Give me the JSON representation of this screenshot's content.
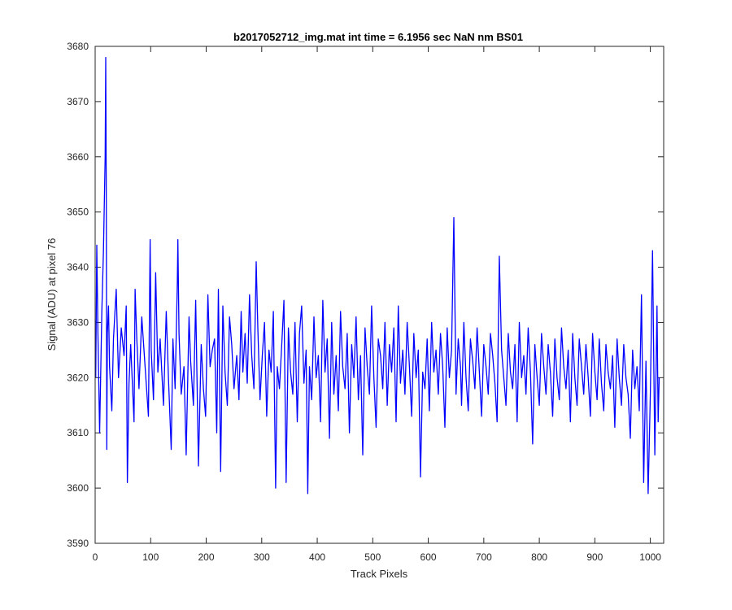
{
  "colors": {
    "line": "#0000ff",
    "axes": "#262626",
    "background": "#ffffff"
  },
  "chart_data": {
    "type": "line",
    "title": "b2017052712_img.mat int time = 6.1956 sec  NaN nm BS01",
    "xlabel": "Track Pixels",
    "ylabel": "Signal (ADU) at pixel 76",
    "xlim": [
      0,
      1024
    ],
    "ylim": [
      3590,
      3680
    ],
    "xticks": [
      0,
      100,
      200,
      300,
      400,
      500,
      600,
      700,
      800,
      900,
      1000
    ],
    "yticks": [
      3590,
      3600,
      3610,
      3620,
      3630,
      3640,
      3650,
      3660,
      3670,
      3680
    ],
    "xtick_labels": [
      "0",
      "100",
      "200",
      "300",
      "400",
      "500",
      "600",
      "700",
      "800",
      "900",
      "1000"
    ],
    "ytick_labels": [
      "3590",
      "3600",
      "3610",
      "3620",
      "3630",
      "3640",
      "3650",
      "3660",
      "3670",
      "3680"
    ],
    "grid": false,
    "series": [
      {
        "points_x": [
          1,
          3,
          5,
          8,
          12,
          15,
          18,
          19,
          20,
          21,
          22,
          24,
          26,
          30,
          33,
          38,
          42,
          47,
          52,
          56,
          58,
          61,
          64,
          70,
          72,
          75,
          79,
          84,
          90,
          96,
          99,
          101,
          105,
          109,
          113,
          117,
          123,
          128,
          132,
          137,
          140,
          144,
          148,
          149,
          151,
          155,
          160,
          164,
          169,
          172,
          177,
          181,
          186,
          191,
          195,
          199,
          203,
          207,
          211,
          215,
          219,
          222,
          226,
          230,
          234,
          238,
          242,
          246,
          250,
          255,
          259,
          263,
          266,
          270,
          274,
          278,
          282,
          286,
          290,
          293,
          297,
          301,
          305,
          309,
          313,
          317,
          321,
          325,
          328,
          332,
          336,
          340,
          344,
          348,
          352,
          356,
          360,
          364,
          368,
          372,
          376,
          380,
          383,
          386,
          390,
          394,
          398,
          402,
          406,
          410,
          414,
          418,
          422,
          426,
          430,
          434,
          438,
          442,
          446,
          450,
          454,
          458,
          462,
          466,
          470,
          474,
          478,
          482,
          486,
          490,
          494,
          498,
          502,
          506,
          510,
          514,
          518,
          522,
          526,
          530,
          534,
          538,
          542,
          546,
          550,
          554,
          558,
          562,
          566,
          570,
          574,
          578,
          582,
          586,
          590,
          594,
          598,
          602,
          606,
          610,
          614,
          618,
          622,
          626,
          630,
          634,
          638,
          642,
          646,
          650,
          654,
          658,
          660,
          664,
          668,
          672,
          676,
          680,
          684,
          688,
          692,
          696,
          700,
          704,
          708,
          712,
          716,
          720,
          724,
          728,
          732,
          736,
          740,
          744,
          748,
          752,
          756,
          760,
          764,
          768,
          772,
          776,
          780,
          784,
          788,
          792,
          796,
          800,
          804,
          808,
          812,
          816,
          820,
          824,
          828,
          832,
          836,
          840,
          844,
          848,
          852,
          856,
          860,
          864,
          868,
          872,
          876,
          880,
          884,
          888,
          892,
          896,
          900,
          904,
          908,
          912,
          916,
          920,
          924,
          928,
          932,
          936,
          940,
          944,
          948,
          952,
          956,
          960,
          964,
          968,
          972,
          976,
          980,
          984,
          988,
          992,
          996,
          1000,
          1004,
          1008,
          1012,
          1014,
          1016,
          1018,
          1020,
          1023
        ],
        "values": [
          3620,
          3644,
          3628,
          3610,
          3632,
          3643,
          3660,
          3678,
          3652,
          3607,
          3628,
          3633,
          3622,
          3614,
          3627,
          3636,
          3620,
          3629,
          3624,
          3633,
          3601,
          3619,
          3626,
          3612,
          3636,
          3627,
          3618,
          3631,
          3622,
          3613,
          3645,
          3625,
          3616,
          3639,
          3621,
          3627,
          3615,
          3632,
          3620,
          3607,
          3627,
          3618,
          3637,
          3645,
          3628,
          3617,
          3622,
          3606,
          3631,
          3623,
          3615,
          3634,
          3604,
          3626,
          3618,
          3613,
          3635,
          3622,
          3625,
          3627,
          3610,
          3636,
          3603,
          3633,
          3621,
          3615,
          3631,
          3626,
          3618,
          3624,
          3616,
          3632,
          3621,
          3628,
          3619,
          3635,
          3624,
          3618,
          3641,
          3629,
          3616,
          3624,
          3630,
          3613,
          3625,
          3621,
          3632,
          3600,
          3622,
          3618,
          3626,
          3634,
          3601,
          3629,
          3621,
          3617,
          3630,
          3612,
          3628,
          3633,
          3619,
          3625,
          3599,
          3622,
          3616,
          3631,
          3620,
          3624,
          3612,
          3634,
          3621,
          3627,
          3609,
          3630,
          3617,
          3624,
          3614,
          3632,
          3622,
          3618,
          3628,
          3610,
          3626,
          3620,
          3631,
          3616,
          3624,
          3606,
          3629,
          3622,
          3617,
          3633,
          3620,
          3611,
          3627,
          3624,
          3618,
          3630,
          3615,
          3626,
          3621,
          3629,
          3612,
          3633,
          3619,
          3625,
          3617,
          3630,
          3622,
          3613,
          3628,
          3620,
          3625,
          3602,
          3621,
          3618,
          3627,
          3614,
          3630,
          3621,
          3625,
          3617,
          3628,
          3622,
          3611,
          3629,
          3620,
          3625,
          3649,
          3617,
          3627,
          3622,
          3615,
          3630,
          3620,
          3614,
          3627,
          3623,
          3618,
          3629,
          3621,
          3613,
          3626,
          3622,
          3617,
          3628,
          3624,
          3619,
          3612,
          3642,
          3625,
          3620,
          3615,
          3628,
          3621,
          3618,
          3626,
          3612,
          3630,
          3620,
          3624,
          3617,
          3629,
          3621,
          3608,
          3626,
          3620,
          3615,
          3628,
          3622,
          3617,
          3626,
          3621,
          3613,
          3627,
          3620,
          3616,
          3629,
          3622,
          3618,
          3625,
          3612,
          3628,
          3620,
          3615,
          3627,
          3622,
          3617,
          3626,
          3620,
          3613,
          3628,
          3621,
          3616,
          3627,
          3619,
          3614,
          3626,
          3621,
          3618,
          3624,
          3611,
          3627,
          3620,
          3615,
          3626,
          3620,
          3617,
          3609,
          3625,
          3618,
          3622,
          3614,
          3635,
          3601,
          3623,
          3599,
          3617,
          3643,
          3606,
          3633,
          3612,
          3620
        ]
      }
    ]
  }
}
